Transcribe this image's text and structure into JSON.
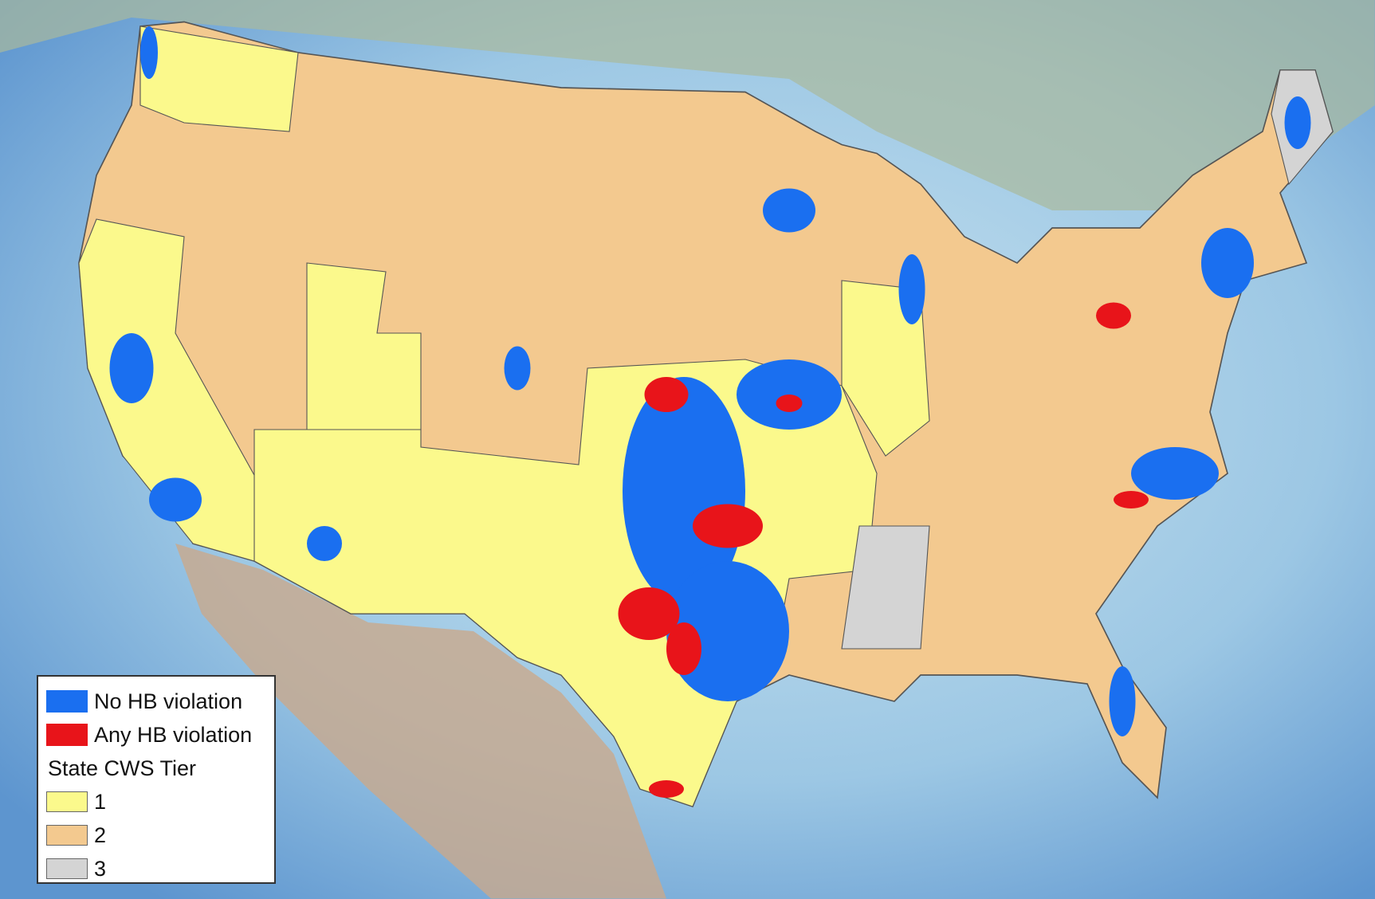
{
  "legend": {
    "items": [
      {
        "label": "No HB violation",
        "color": "#1a6ff0"
      },
      {
        "label": "Any HB violation",
        "color": "#e8141a"
      }
    ],
    "title": "State CWS Tier",
    "tiers": [
      {
        "label": "1",
        "color": "#fbf98c"
      },
      {
        "label": "2",
        "color": "#f3c98f"
      },
      {
        "label": "3",
        "color": "#d4d4d4"
      }
    ]
  }
}
